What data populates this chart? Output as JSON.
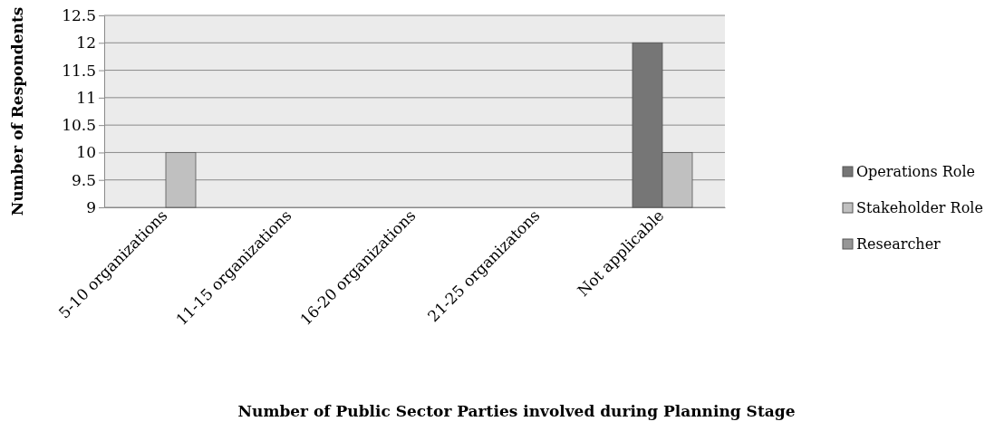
{
  "chart_data": {
    "type": "bar",
    "xlabel": "Number of Public Sector Parties involved during Planning Stage",
    "ylabel": "Number of Respondents",
    "categories": [
      "5-10 organizations",
      "11-15 organizations",
      "16-20 organizations",
      "21-25 organizatons",
      "Not applicable"
    ],
    "series": [
      {
        "name": "Operations Role",
        "color": "#767676",
        "values": [
          null,
          null,
          null,
          null,
          12
        ]
      },
      {
        "name": "Stakeholder Role",
        "color": "#c0c0c0",
        "values": [
          10,
          null,
          null,
          null,
          10
        ]
      },
      {
        "name": "Researcher",
        "color": "#969696",
        "values": [
          null,
          null,
          null,
          null,
          null
        ]
      }
    ],
    "ylim": [
      9,
      12.5
    ],
    "yticks": [
      9,
      9.5,
      10,
      10.5,
      11,
      11.5,
      12,
      12.5
    ],
    "grid": "y",
    "legend": "right"
  }
}
